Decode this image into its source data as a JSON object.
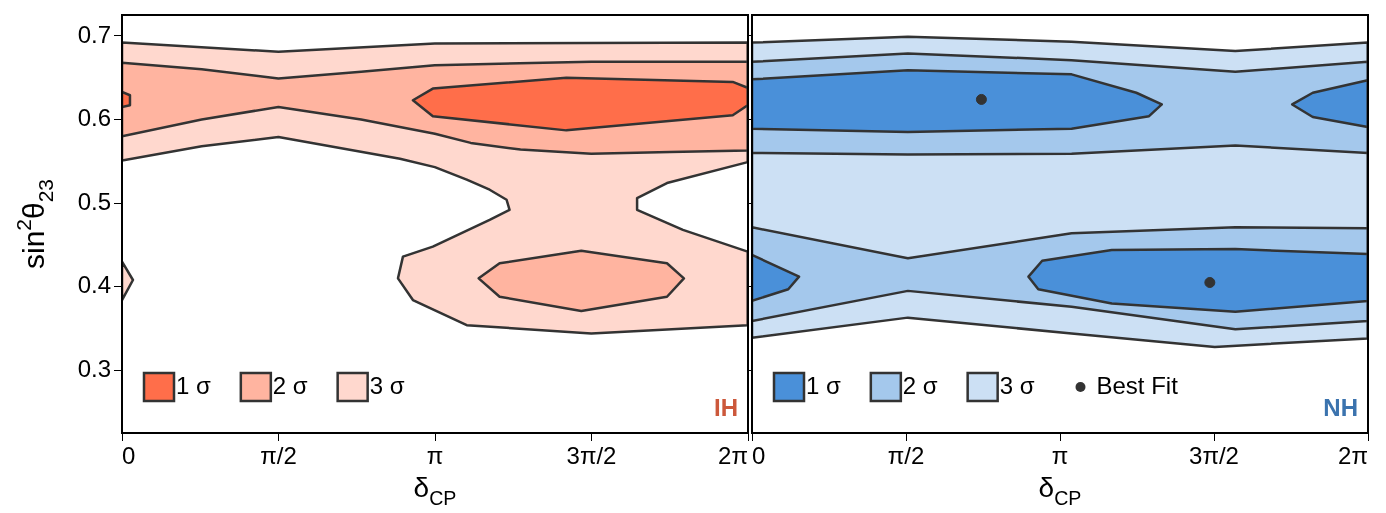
{
  "chart_data": [
    {
      "type": "area",
      "xlabel": "δ$_{CP}$",
      "ylabel": "sin$^{2}$θ$_{23}$",
      "xlim": [
        0,
        6.2832
      ],
      "ylim": [
        0.225,
        0.725
      ],
      "xticks": [
        0,
        {
          "value": 1.5708,
          "label": "π/2"
        },
        {
          "value": 3.1416,
          "label": "π"
        },
        {
          "value": 4.7124,
          "label": "3π/2"
        },
        {
          "value": 6.2832,
          "label": "2π"
        }
      ],
      "yticks": [
        0.3,
        0.4,
        0.5,
        0.6,
        0.7
      ],
      "grid": false,
      "legend": "bottom left",
      "annotations": [
        "IH"
      ],
      "series": [
        {
          "name": "1 σ",
          "color": "#ff6e4a",
          "x": [
            2.92,
            3.12,
            4.46,
            6.13,
            6.28,
            6.28,
            6.13,
            4.46,
            3.12,
            null,
            0,
            0.08,
            0.08,
            0
          ],
          "values": [
            0.623,
            0.637,
            0.65,
            0.645,
            0.638,
            0.617,
            0.605,
            0.587,
            0.604,
            null,
            0.633,
            0.629,
            0.617,
            0.615
          ]
        },
        {
          "name": "2 σ",
          "color": "#ffb4a0",
          "x": [
            0,
            0.8,
            1.57,
            2.4,
            3.14,
            4.71,
            6.28,
            6.28,
            5.5,
            4.71,
            4.0,
            3.5,
            3.14,
            2.4,
            1.57,
            0.8,
            0,
            null,
            3.58,
            3.79,
            4.61,
            5.47,
            5.64,
            5.47,
            4.61,
            3.79
          ],
          "values": [
            0.668,
            0.66,
            0.649,
            0.657,
            0.665,
            0.669,
            0.669,
            0.563,
            0.561,
            0.559,
            0.564,
            0.572,
            0.583,
            0.6,
            0.615,
            0.6,
            0.58,
            null,
            0.41,
            0.428,
            0.443,
            0.428,
            0.41,
            0.388,
            0.371,
            0.388
          ]
        },
        {
          "name": "3 σ",
          "color": "#ffd8ce",
          "x": [
            0,
            1.57,
            3.14,
            6.28,
            6.28,
            5.47,
            5.17,
            5.17,
            5.63,
            6.28,
            6.28,
            4.71,
            3.46,
            2.92,
            2.77,
            2.82,
            3.12,
            3.69,
            3.89,
            3.86,
            3.69,
            3.46,
            3.14,
            2.79,
            1.57,
            0.8,
            0,
            null,
            0,
            0.11,
            0
          ],
          "values": [
            0.692,
            0.681,
            0.691,
            0.692,
            0.549,
            0.524,
            0.506,
            0.492,
            0.468,
            0.442,
            0.354,
            0.344,
            0.354,
            0.384,
            0.41,
            0.436,
            0.448,
            0.48,
            0.492,
            0.504,
            0.516,
            0.528,
            0.543,
            0.553,
            0.579,
            0.568,
            0.551,
            null,
            0.43,
            0.408,
            0.384
          ]
        }
      ]
    },
    {
      "type": "area",
      "xlabel": "δ$_{CP}$",
      "xlim": [
        0,
        6.2832
      ],
      "ylim": [
        0.225,
        0.725
      ],
      "xticks": [
        0,
        {
          "value": 1.5708,
          "label": "π/2"
        },
        {
          "value": 3.1416,
          "label": "π"
        },
        {
          "value": 4.7124,
          "label": "3π/2"
        },
        {
          "value": 6.2832,
          "label": "2π"
        }
      ],
      "yticks": [
        0.3,
        0.4,
        0.5,
        0.6,
        0.7
      ],
      "tick_labels": "x",
      "grid": false,
      "legend": "bottom left",
      "annotations": [
        "NH"
      ],
      "series": [
        {
          "name": "1 σ",
          "color": "#4a90d9",
          "x": [
            0,
            1.59,
            3.26,
            3.92,
            4.18,
            4.05,
            3.26,
            1.59,
            0,
            null,
            5.51,
            5.72,
            6.28,
            6.28,
            5.72,
            null,
            0,
            0.48,
            0.37,
            0,
            null,
            2.82,
            2.96,
            3.67,
            4.93,
            6.28,
            6.28,
            4.93,
            3.67,
            2.92
          ],
          "values": [
            0.648,
            0.659,
            0.654,
            0.632,
            0.618,
            0.604,
            0.589,
            0.585,
            0.589,
            null,
            0.618,
            0.632,
            0.647,
            0.591,
            0.603,
            null,
            0.438,
            0.412,
            0.397,
            0.383,
            null,
            0.412,
            0.431,
            0.444,
            0.445,
            0.439,
            0.383,
            0.37,
            0.38,
            0.397
          ]
        },
        {
          "name": "2 σ",
          "color": "#a4c8ec",
          "x": [
            0,
            1.59,
            3.26,
            4.93,
            6.28,
            6.28,
            4.93,
            3.26,
            1.59,
            0,
            null,
            0,
            1.59,
            3.26,
            4.93,
            6.28,
            6.28,
            4.93,
            3.26,
            1.59,
            0
          ],
          "values": [
            0.669,
            0.679,
            0.671,
            0.657,
            0.669,
            0.56,
            0.569,
            0.559,
            0.558,
            0.56,
            null,
            0.471,
            0.434,
            0.464,
            0.471,
            0.47,
            0.359,
            0.349,
            0.376,
            0.395,
            0.359
          ]
        },
        {
          "name": "3 σ",
          "color": "#cce0f4",
          "x": [
            0,
            1.59,
            3.26,
            4.93,
            6.28,
            6.28,
            4.72,
            3.26,
            1.59,
            0
          ],
          "values": [
            0.692,
            0.699,
            0.693,
            0.682,
            0.692,
            0.338,
            0.328,
            0.344,
            0.363,
            0.339
          ]
        },
        {
          "type": "scatter",
          "name": "Best Fit",
          "color": "#333333",
          "x": [
            2.34,
            4.67
          ],
          "values": [
            0.624,
            0.405
          ]
        }
      ]
    }
  ]
}
